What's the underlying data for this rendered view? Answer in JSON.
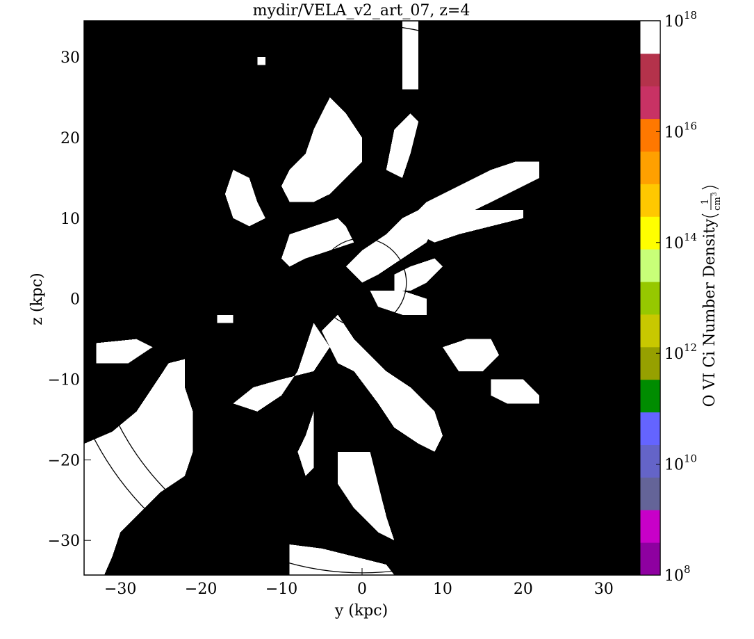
{
  "chart_data": {
    "type": "heatmap",
    "title": "mydir/VELA_v2_art_07, z=4",
    "xlabel": "y  (kpc)",
    "ylabel": "z  (kpc)",
    "xlim": [
      -34.5,
      37.0
    ],
    "ylim": [
      -34.3,
      34.5
    ],
    "x_ticks": [
      -30,
      -20,
      -10,
      0,
      10,
      20,
      30
    ],
    "y_ticks": [
      30,
      20,
      10,
      0,
      -10,
      -20,
      -30
    ],
    "x_tick_labels": [
      "−30",
      "−20",
      "−10",
      "0",
      "10",
      "20",
      "30"
    ],
    "y_tick_labels": [
      "30",
      "20",
      "10",
      "0",
      "−10",
      "−20",
      "−30"
    ],
    "background_color": "#000000",
    "region_color": "#ffffff",
    "colorbar": {
      "label": "O VI Ci Number Density",
      "unit_numerator": "1",
      "unit_denominator": "cm",
      "unit_power": "3",
      "scale": "log",
      "range": [
        100000000.0,
        1e+18
      ],
      "ticks": [
        {
          "exp": 8,
          "base": "10",
          "power": "8"
        },
        {
          "exp": 10,
          "base": "10",
          "power": "10"
        },
        {
          "exp": 12,
          "base": "10",
          "power": "12"
        },
        {
          "exp": 14,
          "base": "10",
          "power": "14"
        },
        {
          "exp": 16,
          "base": "10",
          "power": "16"
        },
        {
          "exp": 18,
          "base": "10",
          "power": "18"
        }
      ],
      "colors": [
        "#8e00a0",
        "#c800c8",
        "#646498",
        "#6464c8",
        "#6464ff",
        "#008c00",
        "#96a000",
        "#c8c800",
        "#96c800",
        "#c8ff78",
        "#ffff00",
        "#ffc800",
        "#ffa000",
        "#ff7800",
        "#c83264",
        "#b4324b",
        "#ffffff"
      ]
    },
    "overlays": [
      {
        "type": "circle",
        "cx": 0,
        "cy": 2,
        "r": 5.5
      },
      {
        "type": "arc",
        "cx": 0,
        "cy": 0,
        "r": 34
      },
      {
        "type": "arc",
        "cx": 0,
        "cy": 0,
        "r": 37.5
      }
    ],
    "regions": [
      [
        [
          -34.5,
          -34.3
        ],
        [
          -34.5,
          -18
        ],
        [
          -31,
          -16.5
        ],
        [
          -28,
          -14
        ],
        [
          -26,
          -11
        ],
        [
          -24,
          -8
        ],
        [
          -22,
          -7.5
        ],
        [
          -22,
          -11
        ],
        [
          -21,
          -14
        ],
        [
          -21,
          -19
        ],
        [
          -22,
          -22
        ],
        [
          -25,
          -24
        ],
        [
          -28,
          -27
        ],
        [
          -30,
          -29
        ],
        [
          -31,
          -32
        ],
        [
          -32,
          -34.3
        ]
      ],
      [
        [
          -33,
          -8
        ],
        [
          -33,
          -5.5
        ],
        [
          -28,
          -5
        ],
        [
          -26,
          -6
        ],
        [
          -29,
          -8
        ]
      ],
      [
        [
          -16,
          -13
        ],
        [
          -13.5,
          -11
        ],
        [
          -10,
          -10
        ],
        [
          -6,
          -9
        ],
        [
          -4,
          -6
        ],
        [
          -6,
          -3
        ],
        [
          -8,
          -9
        ],
        [
          -10,
          -12
        ],
        [
          -13,
          -14
        ]
      ],
      [
        [
          -5,
          -4
        ],
        [
          -3,
          -2
        ],
        [
          -1,
          -5
        ],
        [
          1,
          -7
        ],
        [
          3,
          -9
        ],
        [
          6,
          -11
        ],
        [
          9,
          -14
        ],
        [
          10,
          -17
        ],
        [
          9,
          -19
        ],
        [
          7,
          -18
        ],
        [
          4,
          -16
        ],
        [
          2,
          -13
        ],
        [
          -1,
          -9
        ],
        [
          -3,
          -8
        ]
      ],
      [
        [
          -8,
          -19
        ],
        [
          -7,
          -17
        ],
        [
          -6,
          -14
        ],
        [
          -6,
          -21
        ],
        [
          -7,
          -22
        ]
      ],
      [
        [
          -3,
          -19
        ],
        [
          1,
          -19
        ],
        [
          2,
          -23
        ],
        [
          3,
          -27
        ],
        [
          4,
          -30
        ],
        [
          2,
          -29
        ],
        [
          -1,
          -26
        ],
        [
          -3,
          -23
        ]
      ],
      [
        [
          -9,
          -34.3
        ],
        [
          -9,
          -30.5
        ],
        [
          -5,
          -31
        ],
        [
          -1,
          -32
        ],
        [
          3,
          -33
        ],
        [
          4,
          -34.3
        ]
      ],
      [
        [
          -16,
          16
        ],
        [
          -14,
          15
        ],
        [
          -13,
          12
        ],
        [
          -12,
          10
        ],
        [
          -14,
          9
        ],
        [
          -16,
          10
        ],
        [
          -17,
          13
        ]
      ],
      [
        [
          -4,
          25
        ],
        [
          -2,
          23
        ],
        [
          0,
          20
        ],
        [
          0,
          17
        ],
        [
          -2,
          15
        ],
        [
          -4,
          13
        ],
        [
          -6,
          12
        ],
        [
          -9,
          12
        ],
        [
          -10,
          14
        ],
        [
          -9,
          16
        ],
        [
          -7,
          18
        ],
        [
          -6,
          21
        ]
      ],
      [
        [
          -9,
          8
        ],
        [
          -6,
          9
        ],
        [
          -3,
          10
        ],
        [
          -2,
          9
        ],
        [
          -1,
          7
        ],
        [
          -4,
          6
        ],
        [
          -7,
          5
        ],
        [
          -9,
          4
        ],
        [
          -10,
          5
        ]
      ],
      [
        [
          -2,
          4
        ],
        [
          0,
          6
        ],
        [
          3,
          8
        ],
        [
          5,
          10
        ],
        [
          7,
          11
        ],
        [
          9,
          9
        ],
        [
          8,
          7
        ],
        [
          5,
          5
        ],
        [
          2,
          3
        ],
        [
          0,
          2
        ]
      ],
      [
        [
          5,
          9
        ],
        [
          8,
          12
        ],
        [
          12,
          14
        ],
        [
          16,
          16
        ],
        [
          19,
          17
        ],
        [
          22,
          17
        ],
        [
          22,
          15
        ],
        [
          18,
          13
        ],
        [
          14,
          11
        ],
        [
          10,
          9
        ],
        [
          7,
          7
        ]
      ],
      [
        [
          7,
          8
        ],
        [
          10,
          10
        ],
        [
          14,
          11
        ],
        [
          18,
          11
        ],
        [
          20,
          11
        ],
        [
          20,
          10
        ],
        [
          16,
          9
        ],
        [
          12,
          8
        ],
        [
          9,
          7
        ]
      ],
      [
        [
          4,
          3
        ],
        [
          6,
          4
        ],
        [
          9,
          5
        ],
        [
          10,
          4
        ],
        [
          8,
          2
        ],
        [
          6,
          1
        ],
        [
          4,
          1
        ]
      ],
      [
        [
          1,
          1
        ],
        [
          5,
          1
        ],
        [
          8,
          0
        ],
        [
          8,
          -2
        ],
        [
          5,
          -2
        ],
        [
          2,
          -1
        ]
      ],
      [
        [
          10,
          -6
        ],
        [
          13,
          -5
        ],
        [
          16,
          -5
        ],
        [
          17,
          -7
        ],
        [
          15,
          -9
        ],
        [
          12,
          -9
        ]
      ],
      [
        [
          16,
          -10
        ],
        [
          20,
          -10
        ],
        [
          22,
          -12
        ],
        [
          22,
          -13
        ],
        [
          18,
          -13
        ],
        [
          16,
          -12
        ]
      ],
      [
        [
          3,
          16
        ],
        [
          4,
          21
        ],
        [
          6,
          23
        ],
        [
          7,
          22
        ],
        [
          6,
          18
        ],
        [
          5,
          15
        ]
      ],
      [
        [
          6,
          9
        ],
        [
          8,
          9
        ],
        [
          10,
          10
        ],
        [
          12,
          9
        ],
        [
          10,
          8
        ],
        [
          8,
          8
        ]
      ],
      [
        [
          -13,
          30
        ],
        [
          -12,
          30
        ],
        [
          -12,
          29
        ],
        [
          -13,
          29
        ]
      ],
      [
        [
          -18,
          -2
        ],
        [
          -16,
          -2
        ],
        [
          -16,
          -3
        ],
        [
          -18,
          -3
        ]
      ],
      [
        [
          -1,
          -34.3
        ],
        [
          3,
          -34.3
        ],
        [
          3,
          -33.5
        ],
        [
          -1,
          -33.5
        ]
      ],
      [
        [
          5,
          34.5
        ],
        [
          7,
          34.5
        ],
        [
          7,
          26
        ],
        [
          5,
          26
        ]
      ]
    ]
  }
}
